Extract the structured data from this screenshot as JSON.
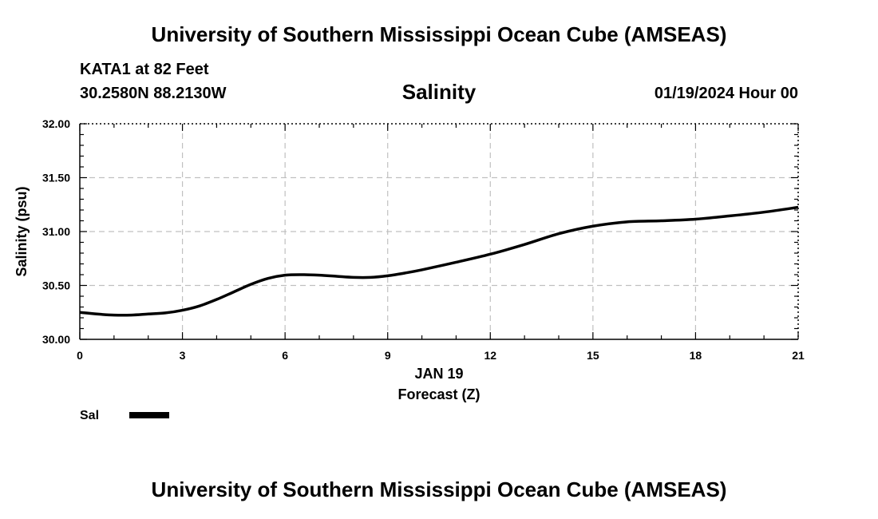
{
  "header": {
    "title": "University of Southern Mississippi Ocean Cube (AMSEAS)",
    "station": "KATA1 at 82 Feet",
    "coords": "30.2580N  88.2130W",
    "datetime": "01/19/2024 Hour 00"
  },
  "footer": {
    "title": "University of Southern Mississippi Ocean Cube (AMSEAS)"
  },
  "chart_data": {
    "type": "line",
    "title": "Salinity",
    "xlabel": "Forecast (Z)",
    "date_label": "JAN 19",
    "ylabel": "Salinity (psu)",
    "xlim": [
      0,
      21
    ],
    "ylim": [
      30.0,
      32.0
    ],
    "x_ticks": [
      0,
      3,
      6,
      9,
      12,
      15,
      18,
      21
    ],
    "y_ticks": [
      30.0,
      30.5,
      31.0,
      31.5,
      32.0
    ],
    "y_tick_labels": [
      "30.00",
      "30.50",
      "31.00",
      "31.50",
      "32.00"
    ],
    "grid": true,
    "legend_position": "bottom-left",
    "colors": {
      "line": "#000000",
      "grid": "#c0c0c0"
    },
    "series": [
      {
        "name": "Sal",
        "x": [
          0,
          0.5,
          1,
          1.5,
          2,
          2.5,
          3,
          3.5,
          4,
          4.5,
          5,
          5.5,
          6,
          6.5,
          7,
          7.5,
          8,
          8.5,
          9,
          9.5,
          10,
          11,
          12,
          13,
          14,
          15,
          16,
          17,
          18,
          19,
          20,
          21
        ],
        "values": [
          30.25,
          30.235,
          30.225,
          30.225,
          30.235,
          30.245,
          30.27,
          30.31,
          30.37,
          30.44,
          30.51,
          30.565,
          30.595,
          30.6,
          30.595,
          30.585,
          30.575,
          30.575,
          30.59,
          30.615,
          30.645,
          30.715,
          30.79,
          30.88,
          30.98,
          31.05,
          31.09,
          31.1,
          31.115,
          31.145,
          31.18,
          31.225
        ]
      }
    ]
  }
}
